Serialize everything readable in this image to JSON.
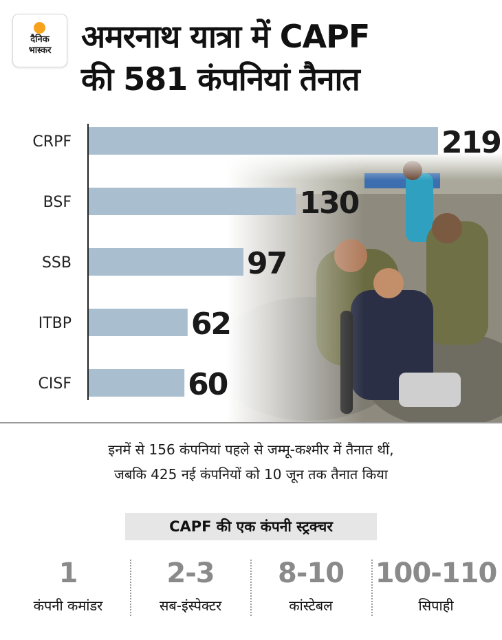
{
  "logo": {
    "line1": "दैनिक",
    "line2": "भास्कर"
  },
  "title": {
    "line1": "अमरनाथ यात्रा में CAPF",
    "line2": "की 581 कंपनियां तैनात"
  },
  "colors": {
    "bar": "#a9bfd0",
    "axis": "#222222",
    "value_text": "#1a1a1a",
    "number_gray": "#8a8a8a"
  },
  "chart_data": {
    "type": "bar",
    "orientation": "horizontal",
    "categories": [
      "CRPF",
      "BSF",
      "SSB",
      "ITBP",
      "CISF"
    ],
    "values": [
      219,
      130,
      97,
      62,
      60
    ],
    "title": "अमरनाथ यात्रा में CAPF की 581 कंपनियां तैनात",
    "xlabel": "",
    "ylabel": ""
  },
  "note": {
    "line1": "इनमें से 156 कंपनियां पहले से जम्मू-कश्मीर में तैनात थीं,",
    "line2": "जबकि 425 नई कंपनियों को 10 जून तक तैनात किया"
  },
  "structure": {
    "title": "CAPF की एक कंपनी स्ट्रक्चर",
    "items": [
      {
        "count": "1",
        "role": "कंपनी कमांडर"
      },
      {
        "count": "2-3",
        "role": "सब-इंस्पेक्टर"
      },
      {
        "count": "8-10",
        "role": "कांस्टेबल"
      },
      {
        "count": "100-110",
        "role": "सिपाही"
      }
    ]
  }
}
